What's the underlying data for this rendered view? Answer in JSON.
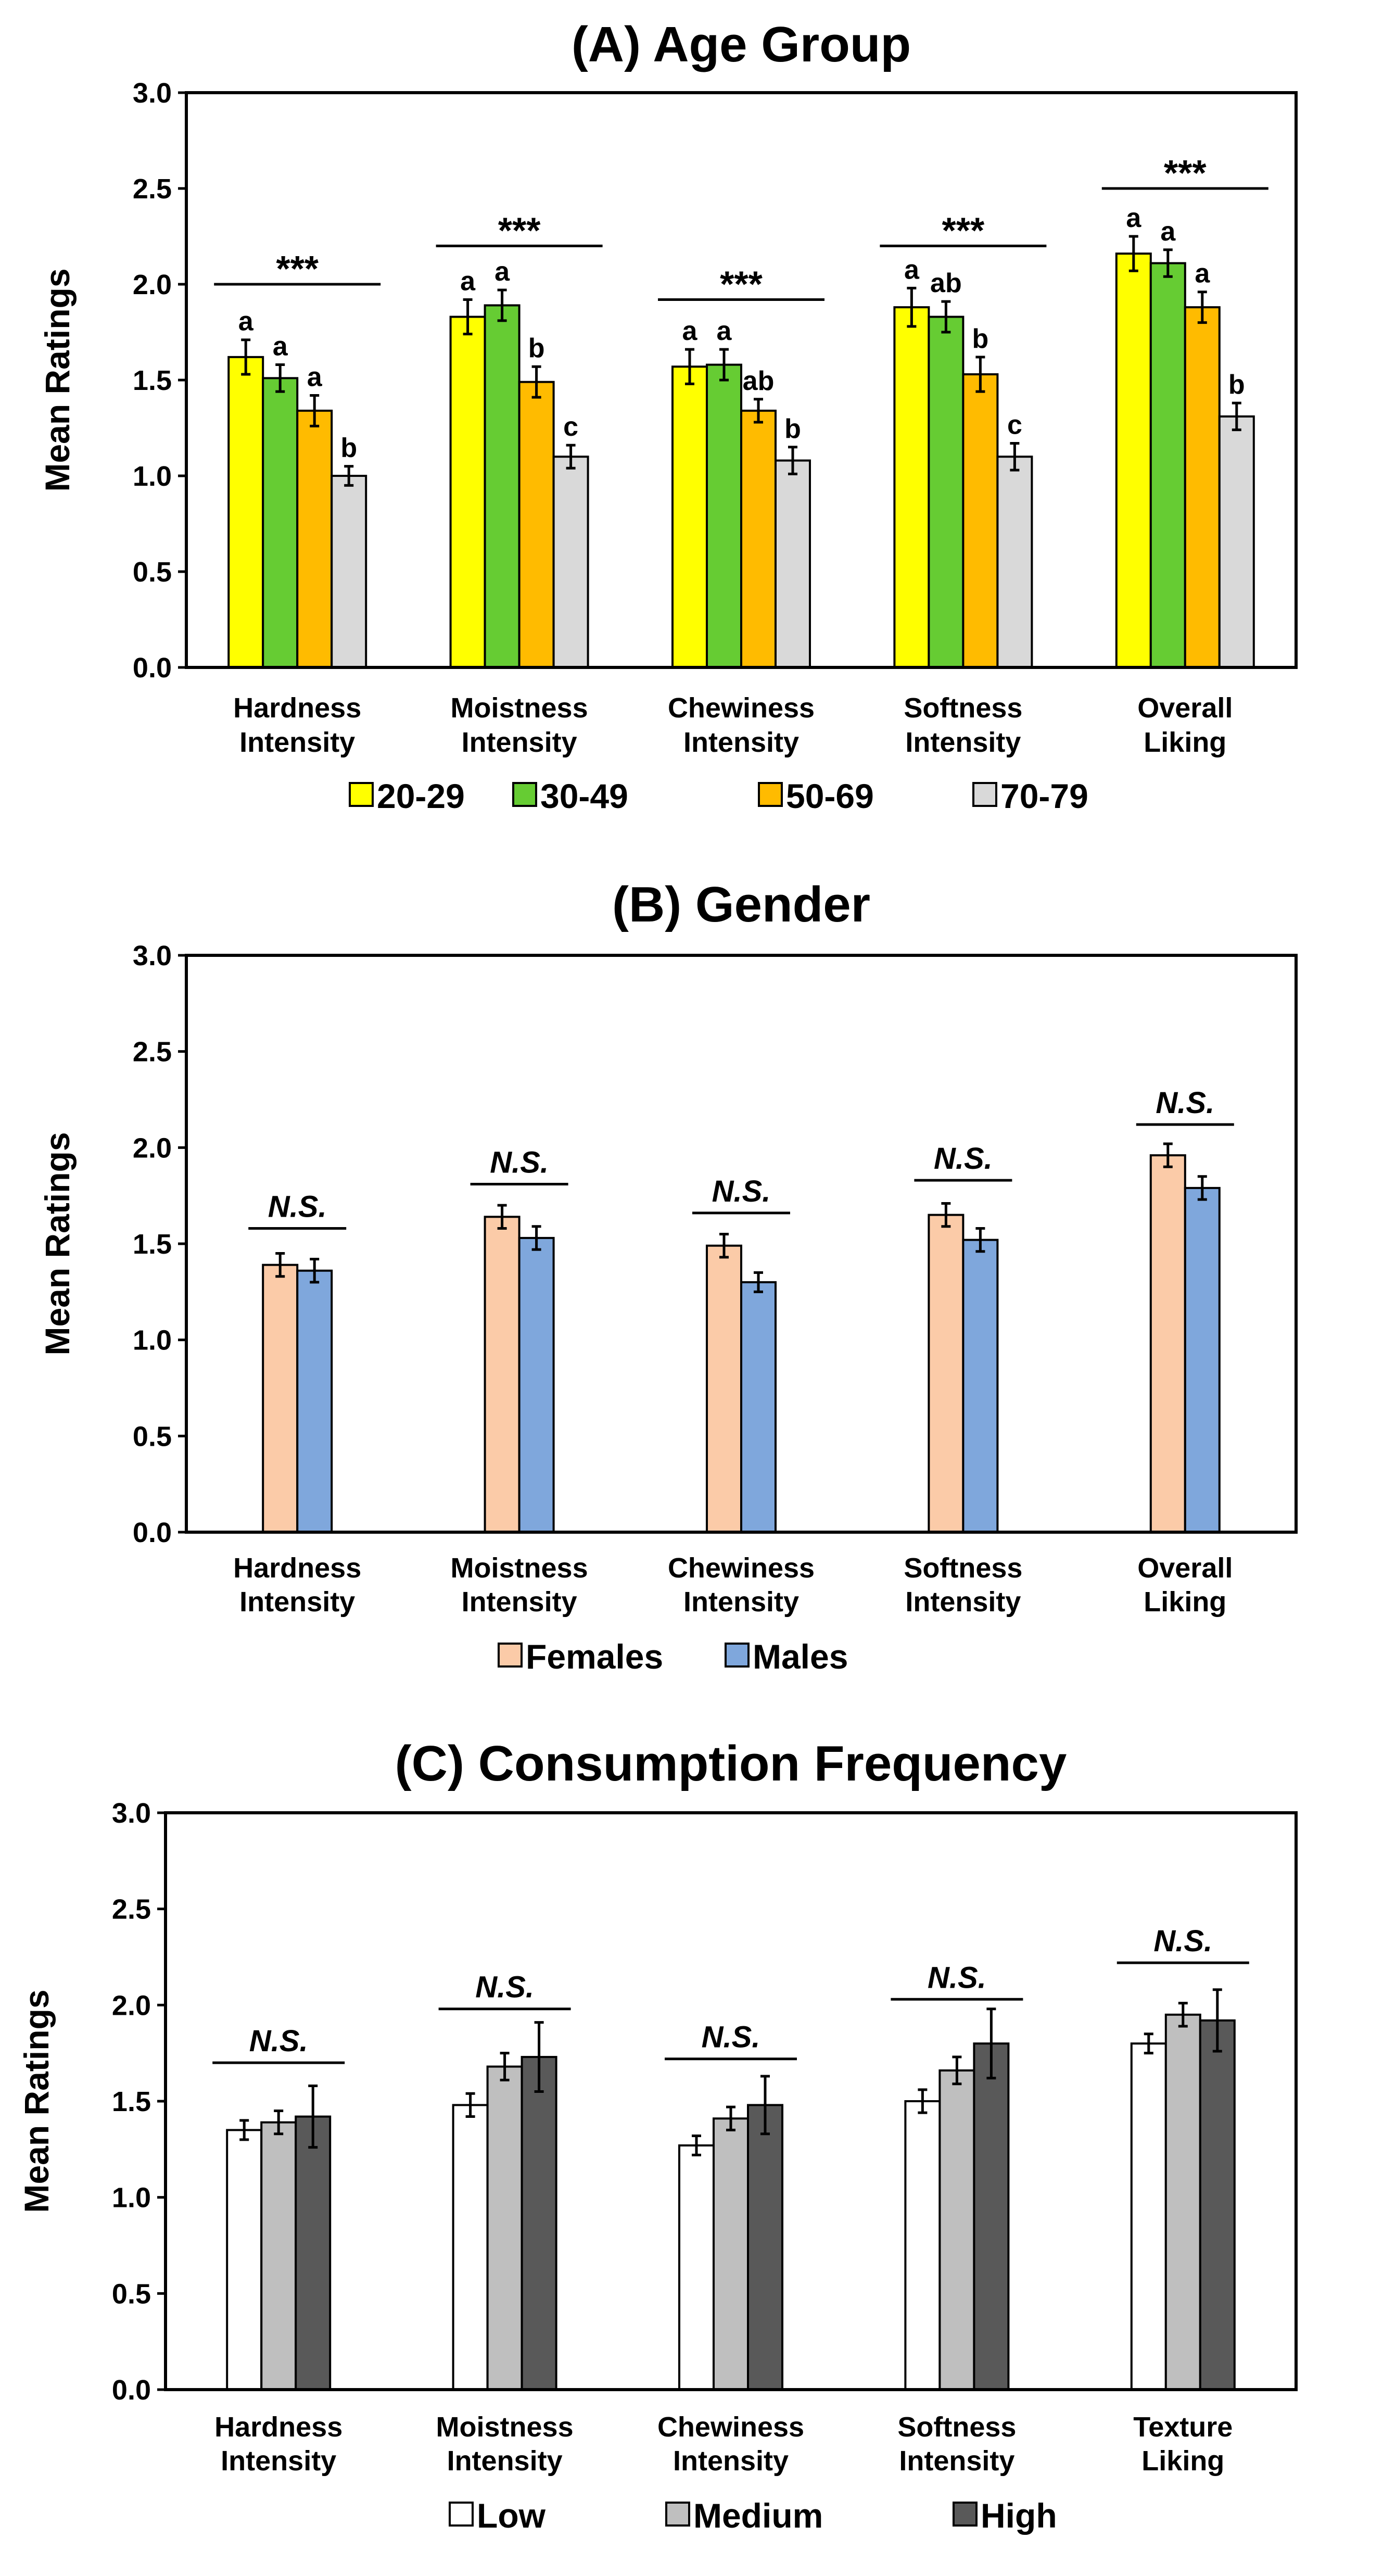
{
  "chart_data": [
    {
      "type": "bar",
      "title": "(A) Age Group",
      "ylabel": "Mean Ratings",
      "ylim": [
        0,
        3
      ],
      "yticks": [
        "0.0",
        "0.5",
        "1.0",
        "1.5",
        "2.0",
        "2.5",
        "3.0"
      ],
      "categories": [
        [
          "Hardness",
          "Intensity"
        ],
        [
          "Moistness",
          "Intensity"
        ],
        [
          "Chewiness",
          "Intensity"
        ],
        [
          "Softness",
          "Intensity"
        ],
        [
          "Overall",
          "Liking"
        ]
      ],
      "series": [
        {
          "name": "20-29",
          "color": "#ffff00",
          "values": [
            1.62,
            1.83,
            1.57,
            1.88,
            2.16
          ],
          "errors": [
            0.09,
            0.09,
            0.09,
            0.1,
            0.09
          ],
          "letters": [
            "a",
            "a",
            "a",
            "a",
            "a"
          ]
        },
        {
          "name": "30-49",
          "color": "#66cc33",
          "values": [
            1.51,
            1.89,
            1.58,
            1.83,
            2.11
          ],
          "errors": [
            0.07,
            0.08,
            0.08,
            0.08,
            0.07
          ],
          "letters": [
            "a",
            "a",
            "a",
            "ab",
            "a"
          ]
        },
        {
          "name": "50-69",
          "color": "#ffbb00",
          "values": [
            1.34,
            1.49,
            1.34,
            1.53,
            1.88
          ],
          "errors": [
            0.08,
            0.08,
            0.06,
            0.09,
            0.08
          ],
          "letters": [
            "a",
            "b",
            "ab",
            "b",
            "a"
          ]
        },
        {
          "name": "70-79",
          "color": "#d9d9d9",
          "values": [
            1.0,
            1.1,
            1.08,
            1.1,
            1.31
          ],
          "errors": [
            0.05,
            0.06,
            0.07,
            0.07,
            0.07
          ],
          "letters": [
            "b",
            "c",
            "b",
            "c",
            "b"
          ]
        }
      ],
      "significance": [
        "***",
        "***",
        "***",
        "***",
        "***"
      ],
      "sig_level": [
        2.0,
        2.2,
        1.92,
        2.2,
        2.5
      ]
    },
    {
      "type": "bar",
      "title": "(B) Gender",
      "ylabel": "Mean Ratings",
      "ylim": [
        0,
        3
      ],
      "yticks": [
        "0.0",
        "0.5",
        "1.0",
        "1.5",
        "2.0",
        "2.5",
        "3.0"
      ],
      "categories": [
        [
          "Hardness",
          "Intensity"
        ],
        [
          "Moistness",
          "Intensity"
        ],
        [
          "Chewiness",
          "Intensity"
        ],
        [
          "Softness",
          "Intensity"
        ],
        [
          "Overall",
          "Liking"
        ]
      ],
      "series": [
        {
          "name": "Females",
          "color": "#fbcba8",
          "values": [
            1.39,
            1.64,
            1.49,
            1.65,
            1.96
          ],
          "errors": [
            0.06,
            0.06,
            0.06,
            0.06,
            0.06
          ]
        },
        {
          "name": "Males",
          "color": "#7fa7dc",
          "values": [
            1.36,
            1.53,
            1.3,
            1.52,
            1.79
          ],
          "errors": [
            0.06,
            0.06,
            0.05,
            0.06,
            0.06
          ]
        }
      ],
      "significance": [
        "N.S.",
        "N.S.",
        "N.S.",
        "N.S.",
        "N.S."
      ],
      "sig_level": [
        1.58,
        1.81,
        1.66,
        1.83,
        2.12
      ]
    },
    {
      "type": "bar",
      "title": "(C) Consumption Frequency",
      "ylabel": "Mean Ratings",
      "ylim": [
        0,
        3
      ],
      "yticks": [
        "0.0",
        "0.5",
        "1.0",
        "1.5",
        "2.0",
        "2.5",
        "3.0"
      ],
      "categories": [
        [
          "Hardness",
          "Intensity"
        ],
        [
          "Moistness",
          "Intensity"
        ],
        [
          "Chewiness",
          "Intensity"
        ],
        [
          "Softness",
          "Intensity"
        ],
        [
          "Texture",
          "Liking"
        ]
      ],
      "series": [
        {
          "name": "Low",
          "color": "#ffffff",
          "values": [
            1.35,
            1.48,
            1.27,
            1.5,
            1.8
          ],
          "errors": [
            0.05,
            0.06,
            0.05,
            0.06,
            0.05
          ]
        },
        {
          "name": "Medium",
          "color": "#bfbfbf",
          "values": [
            1.39,
            1.68,
            1.41,
            1.66,
            1.95
          ],
          "errors": [
            0.06,
            0.07,
            0.06,
            0.07,
            0.06
          ]
        },
        {
          "name": "High",
          "color": "#595959",
          "values": [
            1.42,
            1.73,
            1.48,
            1.8,
            1.92
          ],
          "errors": [
            0.16,
            0.18,
            0.15,
            0.18,
            0.16
          ]
        }
      ],
      "significance": [
        "N.S.",
        "N.S.",
        "N.S.",
        "N.S.",
        "N.S."
      ],
      "sig_level": [
        1.7,
        1.98,
        1.72,
        2.03,
        2.22
      ]
    }
  ]
}
